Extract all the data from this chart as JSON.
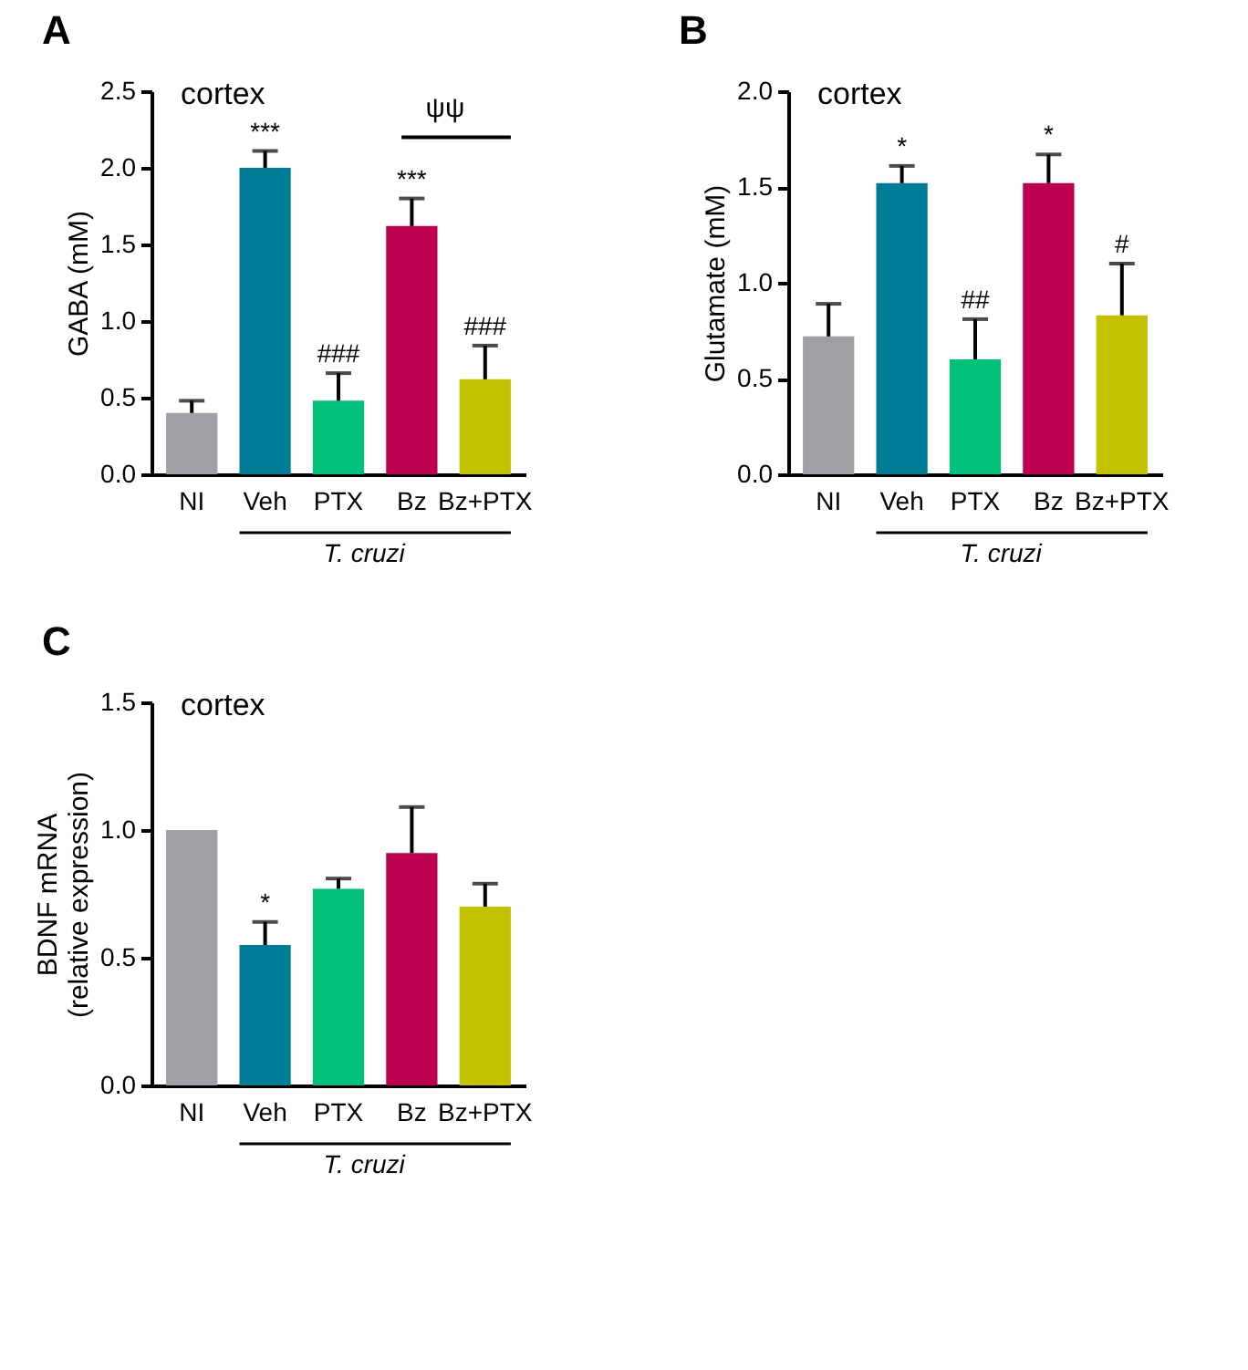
{
  "chart_data": [
    {
      "type": "bar",
      "title": "A",
      "ylabel": "GABA (mM)",
      "categories": [
        "NI",
        "Veh",
        "PTX",
        "Bz",
        "Bz+PTX"
      ],
      "values": [
        0.4,
        2.0,
        0.48,
        1.62,
        0.62
      ],
      "colors": [
        "#a09fa4",
        "#007d96",
        "#00c07a",
        "#be0050",
        "#c3c200"
      ],
      "errors": [
        [
          0.4,
          0.48
        ],
        [
          2.0,
          2.11
        ],
        [
          0.48,
          0.66
        ],
        [
          1.62,
          1.8
        ],
        [
          0.62,
          0.84
        ]
      ],
      "ylim": [
        0,
        2.5
      ],
      "yticks": [
        {
          "value": 0,
          "label": "0.0"
        },
        {
          "value": 0.5,
          "label": "0.5"
        },
        {
          "value": 1,
          "label": "1.0"
        },
        {
          "value": 1.5,
          "label": "1.5"
        },
        {
          "value": 2,
          "label": "2.0"
        },
        {
          "value": 2.5,
          "label": "2.5"
        }
      ],
      "grid": false,
      "legend": false,
      "annotations": [
        "cortex",
        "T. cruzi",
        "ψψ",
        {
          "text": "***",
          "x": "Veh",
          "y": 2.11
        },
        {
          "text": "###",
          "x": "PTX",
          "y": 0.66
        },
        {
          "text": "***",
          "x": "Bz",
          "y": 1.8
        },
        {
          "text": "###",
          "x": "Bz+PTX",
          "y": 0.84
        }
      ]
    },
    {
      "type": "bar",
      "title": "B",
      "ylabel": "Glutamate (mM)",
      "categories": [
        "NI",
        "Veh",
        "PTX",
        "Bz",
        "Bz+PTX"
      ],
      "values": [
        0.72,
        1.52,
        0.6,
        1.52,
        0.83
      ],
      "colors": [
        "#a09fa4",
        "#007d96",
        "#00c07a",
        "#be0050",
        "#c3c200"
      ],
      "errors": [
        [
          0.72,
          0.89
        ],
        [
          1.52,
          1.61
        ],
        [
          0.6,
          0.81
        ],
        [
          1.52,
          1.67
        ],
        [
          0.83,
          1.1
        ]
      ],
      "ylim": [
        0,
        2
      ],
      "yticks": [
        {
          "value": 0,
          "label": "0.0"
        },
        {
          "value": 0.5,
          "label": "0.5"
        },
        {
          "value": 1,
          "label": "1.0"
        },
        {
          "value": 1.5,
          "label": "1.5"
        },
        {
          "value": 2,
          "label": "2.0"
        }
      ],
      "grid": false,
      "legend": false,
      "annotations": [
        "cortex",
        "T. cruzi",
        {
          "text": "*",
          "x": "Veh",
          "y": 1.61
        },
        {
          "text": "##",
          "x": "PTX",
          "y": 0.81
        },
        {
          "text": "*",
          "x": "Bz",
          "y": 1.67
        },
        {
          "text": "#",
          "x": "Bz+PTX",
          "y": 1.1
        }
      ]
    },
    {
      "type": "bar",
      "title": "C",
      "ylabel": "BDNF mRNA\n(relative expression)",
      "categories": [
        "NI",
        "Veh",
        "PTX",
        "Bz",
        "Bz+PTX"
      ],
      "values": [
        1.0,
        0.55,
        0.77,
        0.91,
        0.7
      ],
      "colors": [
        "#a09fa4",
        "#007d96",
        "#00c07a",
        "#be0050",
        "#c3c200"
      ],
      "errors": [
        null,
        [
          0.55,
          0.64
        ],
        [
          0.77,
          0.81
        ],
        [
          0.91,
          1.09
        ],
        [
          0.7,
          0.79
        ]
      ],
      "ylim": [
        0,
        1.5
      ],
      "yticks": [
        {
          "value": 0,
          "label": "0.0"
        },
        {
          "value": 0.5,
          "label": "0.5"
        },
        {
          "value": 1,
          "label": "1.0"
        },
        {
          "value": 1.5,
          "label": "1.5"
        }
      ],
      "grid": false,
      "legend": false,
      "annotations": [
        "cortex",
        "T. cruzi",
        {
          "text": "*",
          "x": "Veh",
          "y": 0.64
        }
      ]
    }
  ]
}
